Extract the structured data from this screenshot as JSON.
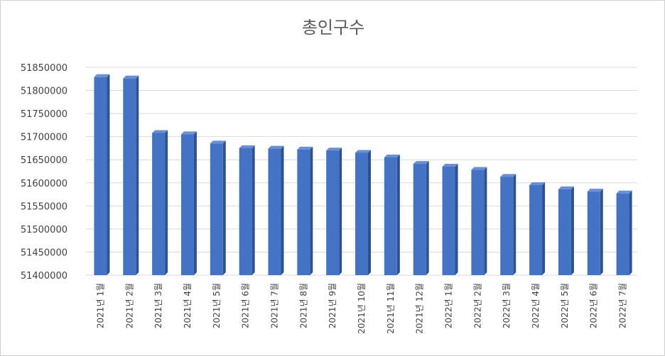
{
  "chart_data": {
    "type": "bar",
    "title": "총인구수",
    "xlabel": "",
    "ylabel": "",
    "categories": [
      "2021년 1월",
      "2021년 2월",
      "2021년 3월",
      "2021년 4월",
      "2021년 5월",
      "2021년 6월",
      "2021년 7월",
      "2021년 8월",
      "2021년 9월",
      "2021년 10월",
      "2021년 11월",
      "2021년 12월",
      "2022년 1월",
      "2022년 2월",
      "2022년 3월",
      "2022년 4월",
      "2022년 5월",
      "2022년 6월",
      "2022년 7월"
    ],
    "values": [
      51829000,
      51826000,
      51708000,
      51705000,
      51685000,
      51675000,
      51674000,
      51672000,
      51670000,
      51665000,
      51655000,
      51641000,
      51635000,
      51628000,
      51613000,
      51595000,
      51586000,
      51581000,
      51577000
    ],
    "yticks": [
      "51400000",
      "51450000",
      "51500000",
      "51550000",
      "51600000",
      "51650000",
      "51700000",
      "51750000",
      "51800000",
      "51850000"
    ],
    "ylim": [
      51400000,
      51850000
    ],
    "grid": true,
    "legend": "none",
    "colors": {
      "bar": "#4472c4",
      "bar_side": "#2f528f",
      "bar_top": "#6a8fd3",
      "grid": "#d9d9d9"
    }
  }
}
